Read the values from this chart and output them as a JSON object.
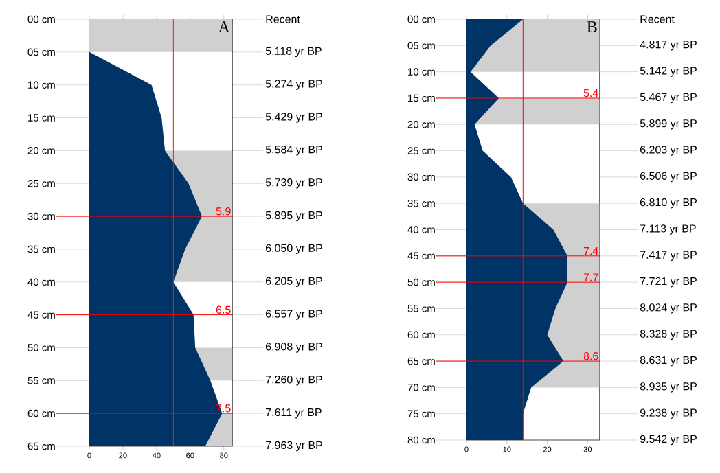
{
  "chart_data": [
    {
      "type": "area",
      "orientation": "horizontal",
      "color": "#003366",
      "x": [
        0,
        5,
        10,
        15,
        20,
        25,
        30,
        35,
        40,
        45,
        50,
        55,
        60,
        65
      ],
      "values": [
        0,
        0,
        37,
        43,
        45,
        59,
        67,
        57,
        50,
        62,
        63,
        72,
        79,
        69
      ],
      "xlim": [
        0,
        85
      ],
      "xticks": [
        0,
        20,
        40,
        60,
        80
      ],
      "ylim": [
        65,
        0
      ],
      "yticks": [
        {
          "value": 0,
          "label": "00 cm"
        },
        {
          "value": 5,
          "label": "05 cm"
        },
        {
          "value": 10,
          "label": "10 cm"
        },
        {
          "value": 15,
          "label": "15 cm"
        },
        {
          "value": 20,
          "label": "20 cm"
        },
        {
          "value": 25,
          "label": "25 cm"
        },
        {
          "value": 30,
          "label": "30 cm"
        },
        {
          "value": 35,
          "label": "35 cm"
        },
        {
          "value": 40,
          "label": "40 cm"
        },
        {
          "value": 45,
          "label": "45 cm"
        },
        {
          "value": 50,
          "label": "50 cm"
        },
        {
          "value": 55,
          "label": "55 cm"
        },
        {
          "value": 60,
          "label": "60 cm"
        },
        {
          "value": 65,
          "label": "65 cm"
        }
      ],
      "y2_categories": [
        "Recent",
        "5.118 yr BP",
        "5.274 yr BP",
        "5.429 yr BP",
        "5.584 yr BP",
        "5.739 yr BP",
        "5.895 yr BP",
        "6.050 yr BP",
        "6.205 yr BP",
        "6.557 yr BP",
        "6.908 yr BP",
        "7.260 yr BP",
        "7.611 yr BP",
        "7.963 yr BP"
      ],
      "bands": [
        {
          "axis": "y",
          "from": 0,
          "to": 5,
          "color": "#d0d0d0"
        },
        {
          "axis": "y",
          "from": 20,
          "to": 40,
          "color": "#d0d0d0"
        },
        {
          "axis": "y",
          "from": 50,
          "to": 55,
          "color": "#d0d0d0"
        },
        {
          "axis": "y",
          "from": 60,
          "to": 65,
          "color": "#d0d0d0"
        }
      ],
      "ref_lines": [
        {
          "axis": "x",
          "value": 50,
          "color": "#e0201e"
        },
        {
          "axis": "y",
          "value": 30,
          "color": "#ff0000"
        },
        {
          "axis": "y",
          "value": 45,
          "color": "#ff0000"
        },
        {
          "axis": "y",
          "value": 60,
          "color": "#ff0000"
        }
      ],
      "annotations": [
        "A",
        {
          "text": "5.9",
          "y": 30
        },
        {
          "text": "6.5",
          "y": 45
        },
        {
          "text": "7.5",
          "y": 60
        }
      ]
    },
    {
      "type": "area",
      "orientation": "horizontal",
      "color": "#003366",
      "x": [
        0,
        5,
        10,
        15,
        20,
        25,
        30,
        35,
        40,
        45,
        50,
        55,
        60,
        65,
        70,
        75,
        80
      ],
      "values": [
        14,
        6,
        1,
        8,
        2,
        4,
        11,
        14,
        21.5,
        25,
        25,
        22,
        20,
        24,
        16,
        14,
        14
      ],
      "xlim": [
        0,
        33
      ],
      "xticks": [
        0,
        10,
        20,
        30
      ],
      "ylim": [
        80,
        0
      ],
      "yticks": [
        {
          "value": 0,
          "label": "00 cm"
        },
        {
          "value": 5,
          "label": "05 cm"
        },
        {
          "value": 10,
          "label": "10 cm"
        },
        {
          "value": 15,
          "label": "15 cm"
        },
        {
          "value": 20,
          "label": "20 cm"
        },
        {
          "value": 25,
          "label": "25 cm"
        },
        {
          "value": 30,
          "label": "30 cm"
        },
        {
          "value": 35,
          "label": "35 cm"
        },
        {
          "value": 40,
          "label": "40 cm"
        },
        {
          "value": 45,
          "label": "45 cm"
        },
        {
          "value": 50,
          "label": "50 cm"
        },
        {
          "value": 55,
          "label": "55 cm"
        },
        {
          "value": 60,
          "label": "60 cm"
        },
        {
          "value": 65,
          "label": "65 cm"
        },
        {
          "value": 70,
          "label": "70 cm"
        },
        {
          "value": 75,
          "label": "75 cm"
        },
        {
          "value": 80,
          "label": "80 cm"
        }
      ],
      "y2_categories": [
        "Recent",
        "4.817 yr BP",
        "5.142 yr BP",
        "5.467 yr BP",
        "5.899 yr BP",
        "6.203 yr BP",
        "6.506 yr BP",
        "6.810 yr BP",
        "7.113 yr BP",
        "7.417 yr BP",
        "7.721 yr BP",
        "8.024 yr BP",
        "8.328 yr BP",
        "8.631 yr BP",
        "8.935 yr BP",
        "9.238 yr BP",
        "9.542 yr BP"
      ],
      "bands": [
        {
          "axis": "y",
          "from": 0,
          "to": 10,
          "color": "#d0d0d0"
        },
        {
          "axis": "y",
          "from": 15,
          "to": 20,
          "color": "#d0d0d0"
        },
        {
          "axis": "y",
          "from": 35,
          "to": 70,
          "color": "#d0d0d0"
        }
      ],
      "ref_lines": [
        {
          "axis": "x",
          "value": 14,
          "color": "#ff0000"
        },
        {
          "axis": "y",
          "value": 15,
          "color": "#ff0000"
        },
        {
          "axis": "y",
          "value": 45,
          "color": "#ff0000"
        },
        {
          "axis": "y",
          "value": 50,
          "color": "#ff0000"
        },
        {
          "axis": "y",
          "value": 65,
          "color": "#ff0000"
        }
      ],
      "annotations": [
        "B",
        {
          "text": "5.4",
          "y": 15
        },
        {
          "text": "7.4",
          "y": 45
        },
        {
          "text": "7.7",
          "y": 50
        },
        {
          "text": "8.6",
          "y": 65
        }
      ]
    }
  ]
}
